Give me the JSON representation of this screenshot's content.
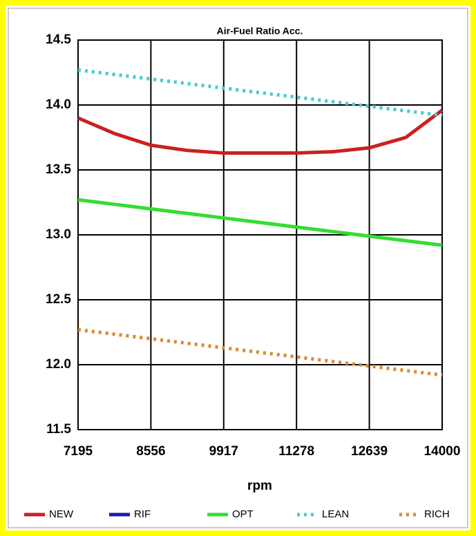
{
  "chart_data": {
    "type": "line",
    "title": "Air-Fuel Ratio Acc.",
    "x_label": "rpm",
    "x": [
      7195,
      7876,
      8556,
      9237,
      9917,
      10598,
      11278,
      11959,
      12639,
      13320,
      14000
    ],
    "xlim": [
      7195,
      14000
    ],
    "xticks": [
      7195,
      8556,
      9917,
      11278,
      12639,
      14000
    ],
    "ylim": [
      11.5,
      14.5
    ],
    "yticks": [
      {
        "value": 11.5,
        "label": "11.5"
      },
      {
        "value": 12,
        "label": "12.0"
      },
      12.5,
      {
        "value": 13,
        "label": "13.0"
      },
      13.5,
      {
        "value": 14,
        "label": "14.0"
      },
      14.5
    ],
    "grid": true,
    "legend": "bottom",
    "series": [
      {
        "name": "NEW",
        "color": "#cc1f1f",
        "dash": "solid",
        "values": [
          13.9,
          13.78,
          13.69,
          13.65,
          13.63,
          13.63,
          13.63,
          13.64,
          13.67,
          13.75,
          13.96
        ]
      },
      {
        "name": "RIF",
        "color": "#1a1aa6",
        "dash": "solid",
        "values": [
          null,
          null,
          null,
          null,
          null,
          null,
          null,
          null,
          null,
          null,
          null
        ]
      },
      {
        "name": "OPT",
        "color": "#33dd33",
        "dash": "solid",
        "values": [
          13.27,
          13.235,
          13.2,
          13.165,
          13.13,
          13.095,
          13.06,
          13.025,
          12.99,
          12.955,
          12.92
        ]
      },
      {
        "name": "LEAN",
        "color": "#44cccc",
        "dash": "dotted",
        "values": [
          14.27,
          14.235,
          14.2,
          14.165,
          14.13,
          14.095,
          14.06,
          14.025,
          13.99,
          13.955,
          13.92
        ]
      },
      {
        "name": "RICH",
        "color": "#dd8833",
        "dash": "dotted",
        "values": [
          12.27,
          12.235,
          12.2,
          12.165,
          12.13,
          12.095,
          12.06,
          12.025,
          11.99,
          11.955,
          11.92
        ]
      }
    ]
  }
}
